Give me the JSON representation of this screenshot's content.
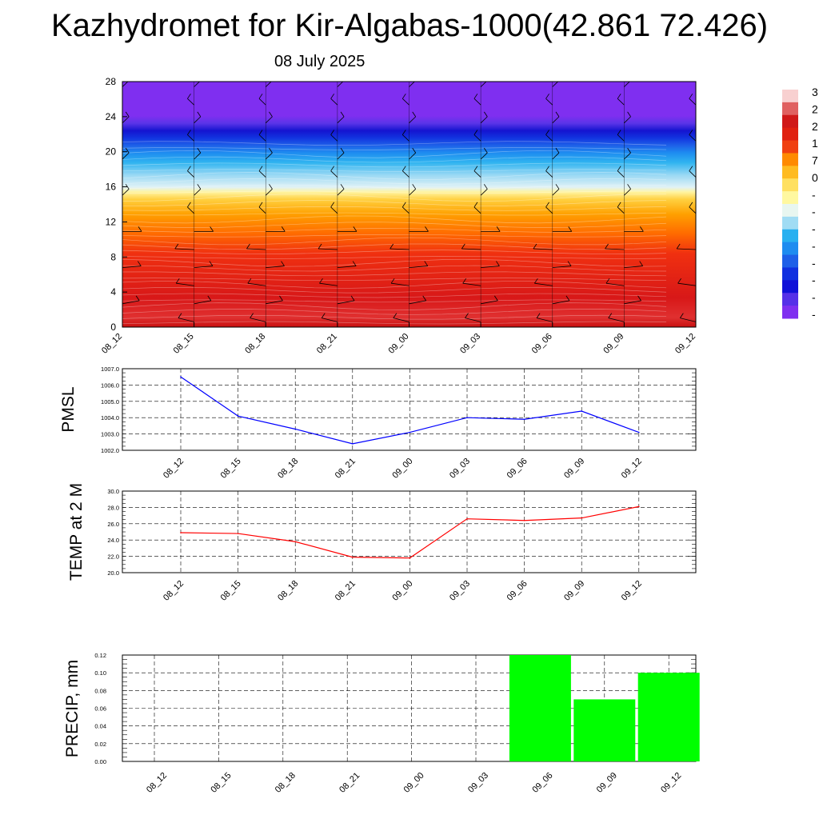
{
  "title": "Kazhydromet for Kir-Algabas-1000(42.861 72.426)",
  "subtitle": "08 July 2025",
  "chart_data": [
    {
      "type": "heatmap",
      "x_ticks": [
        "08_12",
        "08_15",
        "08_18",
        "08_21",
        "09_00",
        "09_03",
        "09_06",
        "09_09",
        "09_12"
      ],
      "ylim": [
        0,
        28
      ],
      "y_ticks": [
        "0",
        "4",
        "8",
        "12",
        "16",
        "20",
        "24",
        "28"
      ],
      "color_levels": [
        {
          "value": 32,
          "color": "#f8d0d0"
        },
        {
          "value": 28,
          "color": "#e06060"
        },
        {
          "value": 24,
          "color": "#d01818"
        },
        {
          "value": 18,
          "color": "#e02010"
        },
        {
          "value": 8,
          "color": "#f04010"
        },
        {
          "value": 4,
          "color": "#ff8a00"
        },
        {
          "value": 0,
          "color": "#ffbb20"
        },
        {
          "value": -8,
          "color": "#ffe060"
        },
        {
          "value": -10,
          "color": "#fff8a0"
        },
        {
          "value": -13,
          "color": "#e8f6f0"
        },
        {
          "value": -16,
          "color": "#a0dcf4"
        },
        {
          "value": -22,
          "color": "#28b0f0"
        },
        {
          "value": -28,
          "color": "#1e8cf0"
        },
        {
          "value": -34,
          "color": "#1e60e8"
        },
        {
          "value": -40,
          "color": "#1030e0"
        },
        {
          "value": -46,
          "color": "#1010d8"
        },
        {
          "value": -50,
          "color": "#5530e8"
        },
        {
          "value": -56,
          "color": "#7f2ff0"
        }
      ],
      "colorbar_labels": [
        "3",
        "2",
        "2",
        "1",
        "7",
        "0",
        "-",
        "-",
        "-",
        "-",
        "-",
        "-",
        "-",
        "-"
      ],
      "wind_barbs": true
    },
    {
      "type": "line",
      "ylabel": "PMSL",
      "categories": [
        "08_12",
        "08_15",
        "08_18",
        "08_21",
        "09_00",
        "09_03",
        "09_06",
        "09_09",
        "09_12"
      ],
      "values": [
        1006.5,
        1004.1,
        1003.3,
        1002.4,
        1003.1,
        1004.0,
        1003.9,
        1004.4,
        1003.1
      ],
      "ylim": [
        1002.0,
        1007.0
      ],
      "y_ticks": [
        "1002.0",
        "1003.0",
        "1004.0",
        "1005.0",
        "1006.0",
        "1007.0"
      ],
      "color": "#0000ff",
      "grid": true
    },
    {
      "type": "line",
      "ylabel": "TEMP at 2 M",
      "categories": [
        "08_12",
        "08_15",
        "08_18",
        "08_21",
        "09_00",
        "09_03",
        "09_06",
        "09_09",
        "09_12"
      ],
      "values": [
        24.9,
        24.8,
        23.8,
        21.9,
        21.8,
        26.6,
        26.4,
        26.7,
        28.1
      ],
      "ylim": [
        20.0,
        30.0
      ],
      "y_ticks": [
        "20.0",
        "22.0",
        "24.0",
        "26.0",
        "28.0",
        "30.0"
      ],
      "color": "#ff0000",
      "grid": true
    },
    {
      "type": "bar",
      "ylabel": "PRECIP, mm",
      "categories": [
        "08_12",
        "08_15",
        "08_18",
        "08_21",
        "09_00",
        "09_03",
        "09_06",
        "09_09",
        "09_12"
      ],
      "values": [
        0,
        0,
        0,
        0,
        0,
        0,
        0.12,
        0.07,
        0.1
      ],
      "ylim": [
        0.0,
        0.12
      ],
      "y_ticks": [
        "0.00",
        "0.02",
        "0.04",
        "0.06",
        "0.08",
        "0.10",
        "0.12"
      ],
      "color": "#00ff00",
      "grid": true
    }
  ]
}
